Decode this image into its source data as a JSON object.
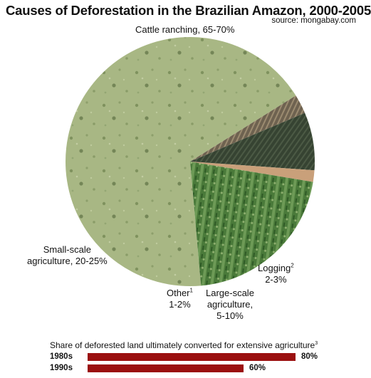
{
  "chart_data": [
    {
      "type": "pie",
      "title": "Causes of Deforestation in the Brazilian Amazon, 2000-2005",
      "source": "source: mongabay.com",
      "slices": [
        {
          "label": "Cattle ranching, 65-70%",
          "value": 67.5,
          "color": "#a9b885"
        },
        {
          "label": "Logging",
          "note": "2",
          "range": "2-3%",
          "value": 2.5,
          "color": "#7a6a52"
        },
        {
          "label": "Large-scale agriculture, 5-10%",
          "value": 7.5,
          "color": "#3a4636"
        },
        {
          "label": "Other",
          "note": "1",
          "range": "1-2%",
          "value": 1.5,
          "color": "#c9a07a"
        },
        {
          "label": "Small-scale agriculture, 20-25%",
          "value": 21,
          "color": "#4d7a3c"
        }
      ]
    },
    {
      "type": "bar",
      "orientation": "horizontal",
      "title": "Share of deforested land ultimately converted for extensive agriculture",
      "title_note": "3",
      "categories": [
        "1980s",
        "1990s"
      ],
      "values": [
        80,
        60
      ],
      "value_labels": [
        "80%",
        "60%"
      ],
      "xlim": [
        0,
        100
      ],
      "color": "#9b1010"
    }
  ],
  "labels": {
    "cattle": "Cattle ranching, 65-70%",
    "logging_name": "Logging",
    "logging_note": "2",
    "logging_range": "2-3%",
    "large_l1": "Large-scale",
    "large_l2": "agriculture,",
    "large_l3": "5-10%",
    "other_name": "Other",
    "other_note": "1",
    "other_range": "1-2%",
    "small_l1": "Small-scale",
    "small_l2": "agriculture, 20-25%"
  }
}
